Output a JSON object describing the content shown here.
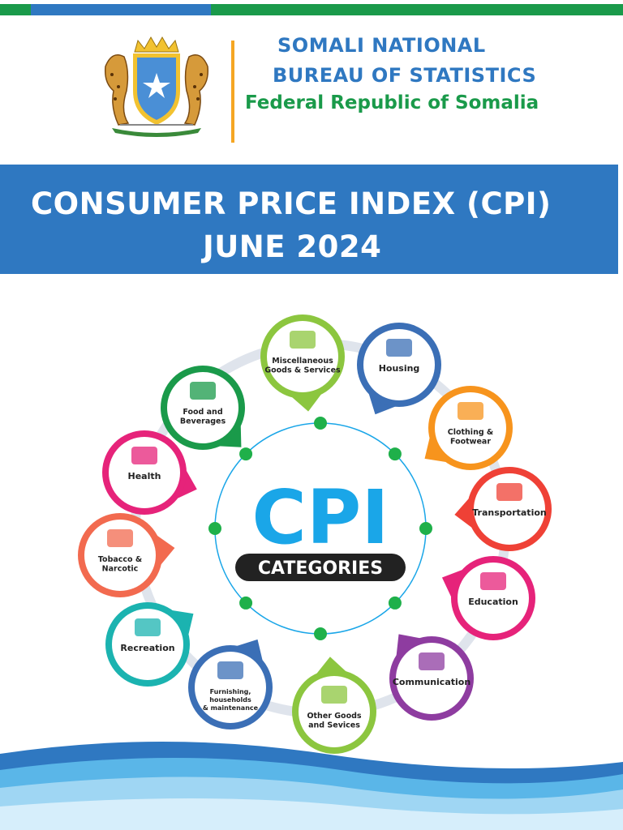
{
  "header": {
    "org_line1": "SOMALI NATIONAL",
    "org_line2": "BUREAU OF STATISTICS",
    "org_line3": "Federal Republic of Somalia",
    "emblem_icon": "coat-of-arms-icon"
  },
  "title": {
    "line1": "CONSUMER PRICE INDEX (CPI)",
    "line2": "JUNE 2024"
  },
  "center": {
    "big": "CPI",
    "sub": "CATEGORIES"
  },
  "categories": [
    {
      "label1": "Miscellaneous",
      "label2": "Goods & Services",
      "color": "#8cc63f",
      "icon": "misc-goods-icon"
    },
    {
      "label1": "Housing",
      "label2": "",
      "color": "#3b6fb6",
      "icon": "house-icon"
    },
    {
      "label1": "Clothing &",
      "label2": "Footwear",
      "color": "#f7941d",
      "icon": "clothing-icon"
    },
    {
      "label1": "Transportation",
      "label2": "",
      "color": "#ef4136",
      "icon": "airplane-icon"
    },
    {
      "label1": "Education",
      "label2": "",
      "color": "#e6237a",
      "icon": "laptop-icon"
    },
    {
      "label1": "Communication",
      "label2": "",
      "color": "#8e3ca0",
      "icon": "chat-icon"
    },
    {
      "label1": "Other Goods",
      "label2": "and Sevices",
      "color": "#8cc63f",
      "icon": "scissors-icon"
    },
    {
      "label1": "Furnishing,",
      "label2": "households",
      "label3": "& maintenance",
      "color": "#3b6fb6",
      "icon": "furniture-icon"
    },
    {
      "label1": "Recreation",
      "label2": "",
      "color": "#1bb3b0",
      "icon": "dumbbell-icon"
    },
    {
      "label1": "Tobacco &",
      "label2": "Narcotic",
      "color": "#f26a4f",
      "icon": "no-smoking-icon"
    },
    {
      "label1": "Health",
      "label2": "",
      "color": "#e6237a",
      "icon": "stethoscope-icon"
    },
    {
      "label1": "Food and",
      "label2": "Beverages",
      "color": "#1a9a4a",
      "icon": "food-icon"
    }
  ],
  "colors": {
    "brand_blue": "#2f78c1",
    "brand_green": "#1a9a4a",
    "accent_orange": "#f5a623",
    "cpi_blue": "#1aa6e8"
  }
}
